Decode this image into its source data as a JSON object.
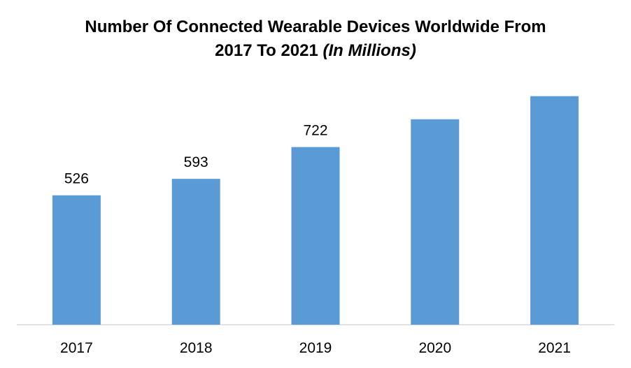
{
  "chart_data": {
    "type": "bar",
    "title_line1": "Number Of Connected Wearable Devices Worldwide From",
    "title_line2_prefix": "2017 To 2021 ",
    "title_units": "(In Millions)",
    "categories": [
      "2017",
      "2018",
      "2019",
      "2020",
      "2021"
    ],
    "values": [
      526,
      593,
      722,
      835,
      929
    ],
    "data_labels": [
      "526",
      "593",
      "722",
      "",
      ""
    ],
    "xlabel": "",
    "ylabel": "",
    "ylim": [
      0,
      1000
    ],
    "grid": false,
    "legend": "none",
    "bar_color": "#5B9BD5",
    "axis_color": "#D9D9D9"
  }
}
